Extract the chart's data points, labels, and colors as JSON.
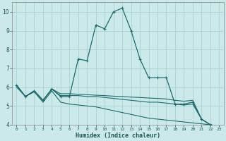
{
  "xlabel": "Humidex (Indice chaleur)",
  "background_color": "#cce9e9",
  "grid_color": "#aed4d4",
  "line_color": "#1a6b6b",
  "x_values": [
    0,
    1,
    2,
    3,
    4,
    5,
    6,
    7,
    8,
    9,
    10,
    11,
    12,
    13,
    14,
    15,
    16,
    17,
    18,
    19,
    20,
    21,
    22,
    23
  ],
  "series": [
    [
      6.1,
      5.5,
      5.8,
      5.3,
      5.9,
      5.5,
      5.5,
      7.5,
      7.4,
      9.3,
      9.1,
      10.0,
      10.2,
      9.0,
      7.5,
      6.5,
      6.5,
      6.5,
      5.1,
      5.1,
      5.2,
      4.3,
      4.0,
      3.9
    ],
    [
      6.1,
      5.5,
      5.8,
      5.3,
      5.9,
      5.55,
      5.55,
      5.55,
      5.5,
      5.5,
      5.45,
      5.4,
      5.35,
      5.3,
      5.25,
      5.2,
      5.2,
      5.15,
      5.1,
      5.05,
      5.1,
      4.3,
      4.0,
      3.9
    ],
    [
      6.1,
      5.5,
      5.8,
      5.3,
      5.9,
      5.65,
      5.65,
      5.62,
      5.6,
      5.57,
      5.55,
      5.52,
      5.5,
      5.47,
      5.45,
      5.42,
      5.4,
      5.37,
      5.3,
      5.25,
      5.3,
      4.3,
      4.0,
      3.9
    ],
    [
      6.0,
      5.5,
      5.75,
      5.2,
      5.8,
      5.2,
      5.1,
      5.05,
      5.0,
      4.95,
      4.85,
      4.75,
      4.65,
      4.55,
      4.45,
      4.35,
      4.3,
      4.25,
      4.2,
      4.15,
      4.1,
      4.05,
      4.0,
      3.9
    ]
  ],
  "ylim": [
    4,
    10.5
  ],
  "xlim": [
    -0.5,
    23.5
  ],
  "yticks": [
    4,
    5,
    6,
    7,
    8,
    9,
    10
  ],
  "xticks": [
    0,
    1,
    2,
    3,
    4,
    5,
    6,
    7,
    8,
    9,
    10,
    11,
    12,
    13,
    14,
    15,
    16,
    17,
    18,
    19,
    20,
    21,
    22,
    23
  ],
  "xtick_labels": [
    "0",
    "1",
    "2",
    "3",
    "4",
    "5",
    "6",
    "7",
    "8",
    "9",
    "10",
    "11",
    "12",
    "13",
    "14",
    "15",
    "16",
    "17",
    "18",
    "19",
    "20",
    "21",
    "22",
    "23"
  ]
}
